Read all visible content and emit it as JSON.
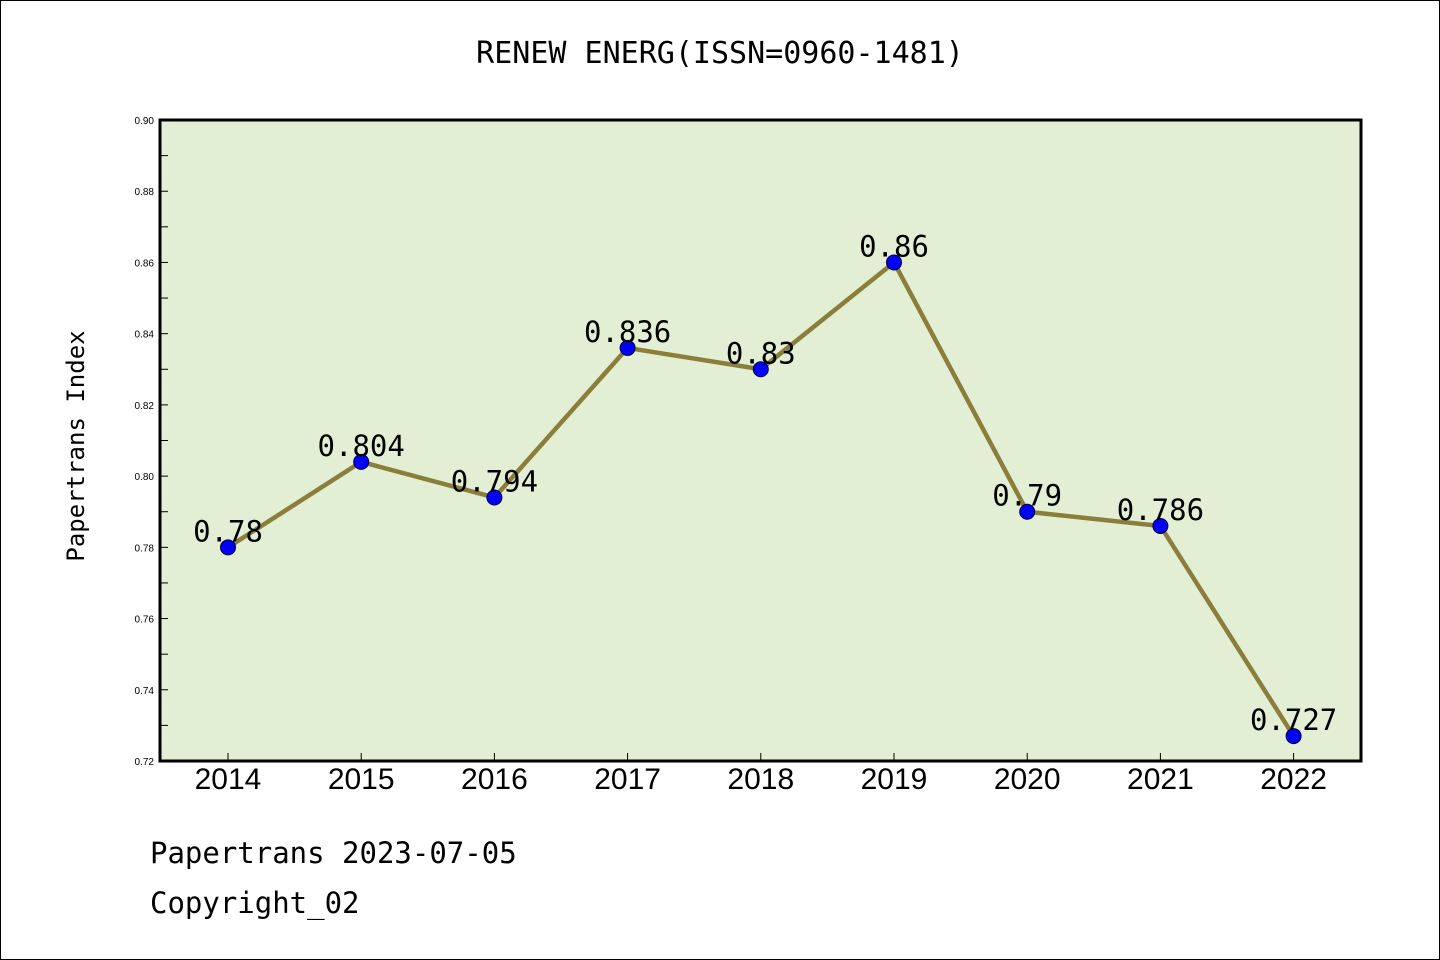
{
  "chart_data": {
    "type": "line",
    "title": "RENEW ENERG(ISSN=0960-1481)",
    "xlabel": "",
    "ylabel": "Papertrans Index",
    "categories": [
      "2014",
      "2015",
      "2016",
      "2017",
      "2018",
      "2019",
      "2020",
      "2021",
      "2022"
    ],
    "values": [
      0.78,
      0.804,
      0.794,
      0.836,
      0.83,
      0.86,
      0.79,
      0.786,
      0.727
    ],
    "data_labels": [
      "0.78",
      "0.804",
      "0.794",
      "0.836",
      "0.83",
      "0.86",
      "0.79",
      "0.786",
      "0.727"
    ],
    "ylim": [
      0.72,
      0.9
    ],
    "yticks": [
      "0.72",
      "0.74",
      "0.76",
      "0.78",
      "0.80",
      "0.82",
      "0.84",
      "0.86",
      "0.88",
      "0.90"
    ],
    "grid": false,
    "legend": "none",
    "colors": {
      "plot_background": "#e2efd4",
      "line": "#8b7d3a",
      "marker": "#0000ff"
    }
  },
  "footer": {
    "line1": "Papertrans 2023-07-05",
    "line2": "Copyright_02"
  }
}
